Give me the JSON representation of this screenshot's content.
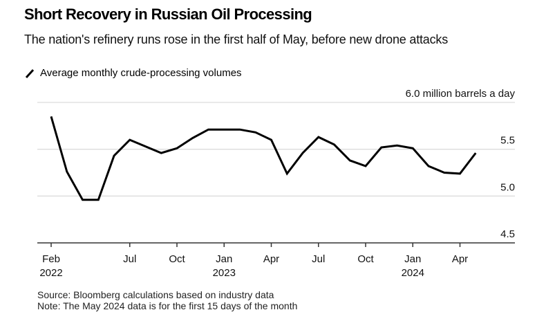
{
  "header": {
    "title": "Short Recovery in Russian Oil Processing",
    "subtitle": "The nation's refinery runs rose in the first half of May, before new drone attacks"
  },
  "legend": {
    "icon": "line-slash-icon",
    "label": "Average monthly crude-processing volumes"
  },
  "footer": {
    "source": "Source: Bloomberg calculations based on industry data",
    "note": "Note: The May 2024 data is for the first 15 days of the month"
  },
  "chart_data": {
    "type": "line",
    "title": "Short Recovery in Russian Oil Processing",
    "subtitle": "The nation's refinery runs rose in the first half of May, before new drone attacks",
    "xlabel": "",
    "ylabel": "million barrels a day",
    "ylim": [
      4.5,
      6.0
    ],
    "yticks": [
      {
        "value": 6.0,
        "label": "6.0 million barrels a day"
      },
      {
        "value": 5.5,
        "label": "5.5"
      },
      {
        "value": 5.0,
        "label": "5.0"
      },
      {
        "value": 4.5,
        "label": "4.5"
      }
    ],
    "grid": true,
    "legend_position": "top-left",
    "xticks": [
      {
        "index": 0,
        "label": "Feb",
        "year": "2022"
      },
      {
        "index": 5,
        "label": "Jul",
        "year": ""
      },
      {
        "index": 8,
        "label": "Oct",
        "year": ""
      },
      {
        "index": 11,
        "label": "Jan",
        "year": "2023"
      },
      {
        "index": 14,
        "label": "Apr",
        "year": ""
      },
      {
        "index": 17,
        "label": "Jul",
        "year": ""
      },
      {
        "index": 20,
        "label": "Oct",
        "year": ""
      },
      {
        "index": 23,
        "label": "Jan",
        "year": "2024"
      },
      {
        "index": 26,
        "label": "Apr",
        "year": ""
      }
    ],
    "x": [
      "2022-02",
      "2022-03",
      "2022-04",
      "2022-05",
      "2022-06",
      "2022-07",
      "2022-08",
      "2022-09",
      "2022-10",
      "2022-11",
      "2022-12",
      "2023-01",
      "2023-02",
      "2023-03",
      "2023-04",
      "2023-05",
      "2023-06",
      "2023-07",
      "2023-08",
      "2023-09",
      "2023-10",
      "2023-11",
      "2023-12",
      "2024-01",
      "2024-02",
      "2024-03",
      "2024-04",
      "2024-05"
    ],
    "series": [
      {
        "name": "Average monthly crude-processing volumes",
        "color": "#000000",
        "values": [
          5.85,
          5.26,
          4.96,
          4.96,
          5.43,
          5.6,
          5.53,
          5.46,
          5.51,
          5.62,
          5.71,
          5.71,
          5.71,
          5.68,
          5.6,
          5.24,
          5.46,
          5.63,
          5.55,
          5.38,
          5.32,
          5.52,
          5.54,
          5.51,
          5.32,
          5.25,
          5.24,
          5.46
        ]
      }
    ]
  }
}
